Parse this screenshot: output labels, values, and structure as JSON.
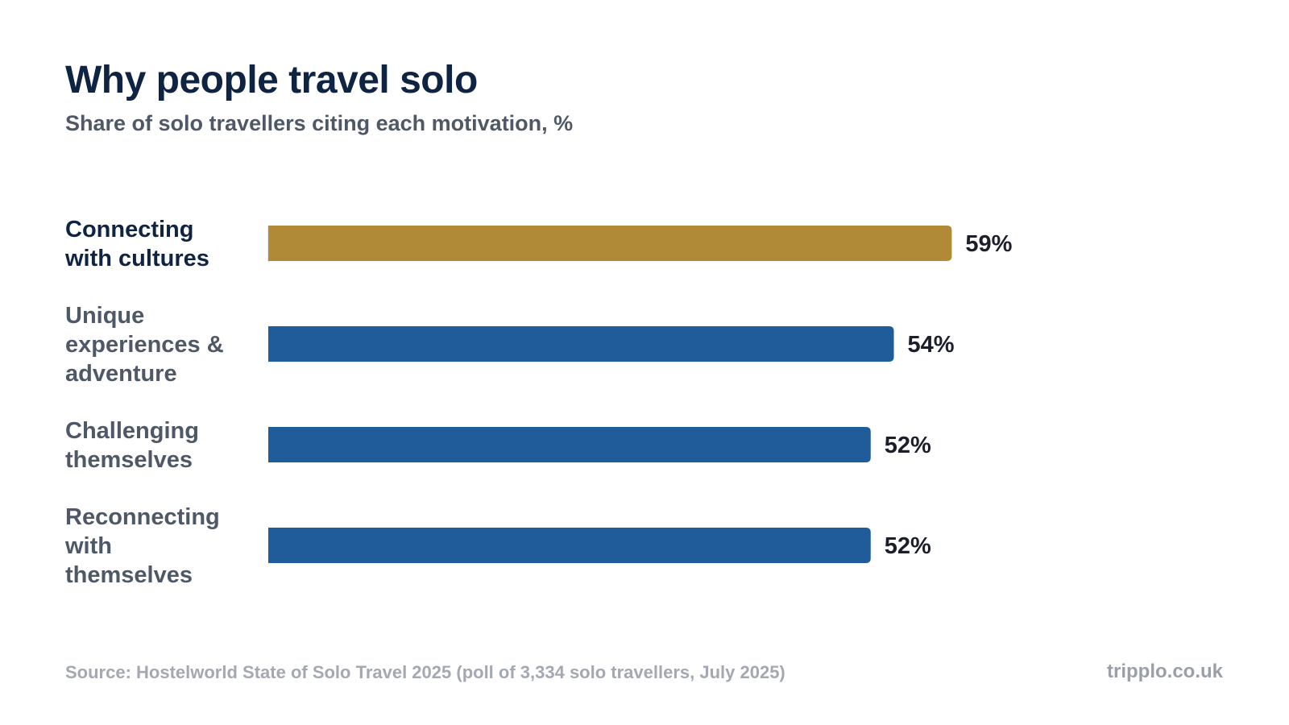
{
  "header": {
    "title": "Why people travel solo",
    "subtitle": "Share of solo travellers citing each motivation, %"
  },
  "chart_data": {
    "type": "bar",
    "orientation": "horizontal",
    "title": "Why people travel solo",
    "subtitle": "Share of solo travellers citing each motivation, %",
    "categories": [
      [
        "Connecting",
        "with cultures"
      ],
      [
        "Unique",
        "experiences &",
        "adventure"
      ],
      [
        "Challenging",
        "themselves"
      ],
      [
        "Reconnecting",
        "with",
        "themselves"
      ]
    ],
    "values": [
      59,
      54,
      52,
      52
    ],
    "value_labels": [
      "59%",
      "54%",
      "52%",
      "52%"
    ],
    "highlight_index": 0,
    "xlim": [
      0,
      100
    ],
    "grid": false,
    "legend": "none",
    "colors": {
      "highlight": "#b08a36",
      "bar": "#205c99",
      "highlight_label": "#0f2342",
      "label": "#4f5866",
      "baseline": "#cfd3d8"
    }
  },
  "footer": {
    "source": "Source: Hostelworld State of Solo Travel 2025 (poll of 3,334 solo travellers, July 2025)",
    "brand": "tripplo.co.uk"
  }
}
